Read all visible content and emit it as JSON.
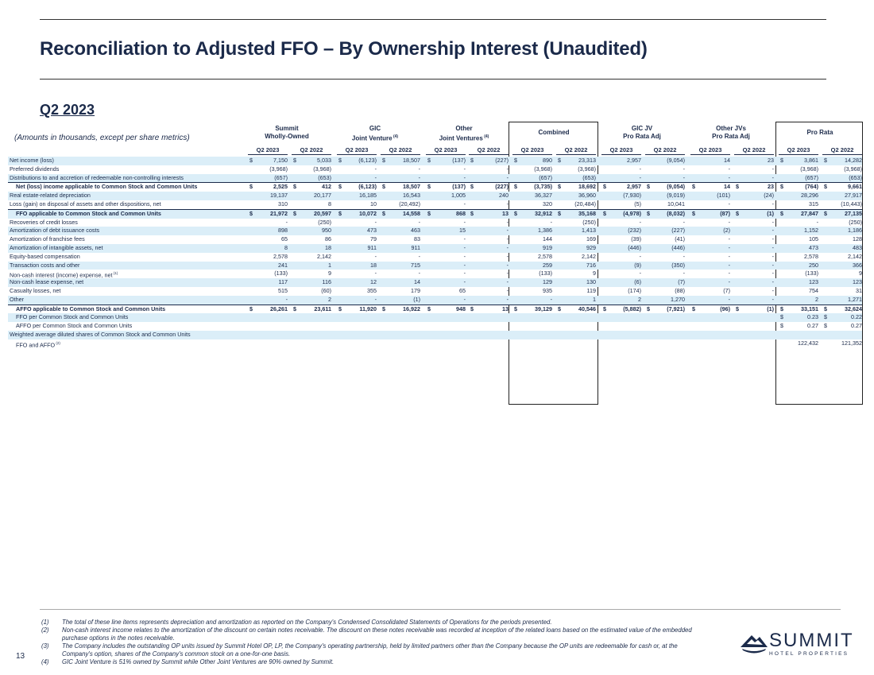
{
  "title": "Reconciliation to Adjusted FFO – By Ownership Interest (Unaudited)",
  "period": "Q2 2023",
  "amounts_note": "(Amounts in thousands, except per share metrics)",
  "groups": [
    {
      "line1": "Summit",
      "line2": "Wholly-Owned",
      "sup": ""
    },
    {
      "line1": "GIC",
      "line2": "Joint Venture",
      "sup": "(4)"
    },
    {
      "line1": "Other",
      "line2": "Joint Ventures",
      "sup": "(4)"
    },
    {
      "line1": "Combined",
      "line2": "",
      "sup": ""
    },
    {
      "line1": "GIC JV",
      "line2": "Pro Rata Adj",
      "sup": ""
    },
    {
      "line1": "Other JVs",
      "line2": "Pro Rata Adj",
      "sup": ""
    },
    {
      "line1": "Pro Rata",
      "line2": "",
      "sup": ""
    }
  ],
  "col_headers": [
    "Q2 2023",
    "Q2 2022",
    "Q2 2023",
    "Q2 2022",
    "Q2 2023",
    "Q2 2022",
    "Q2 2023",
    "Q2 2022",
    "Q2 2023",
    "Q2 2022",
    "Q2 2023",
    "Q2 2022",
    "Q2 2023",
    "Q2 2022"
  ],
  "rows": [
    {
      "label": "Net income (loss)",
      "sup": "",
      "indent": false,
      "bold": false,
      "shade": true,
      "uline": false,
      "dollar": [
        true,
        true,
        true,
        true,
        true,
        true,
        true,
        true,
        false,
        false,
        false,
        false,
        true,
        true
      ],
      "v": [
        "7,150",
        "5,033",
        "(6,123)",
        "18,507",
        "(137)",
        "(227)",
        "890",
        "23,313",
        "2,957",
        "(9,054)",
        "14",
        "23",
        "3,861",
        "14,282"
      ]
    },
    {
      "label": "Preferred dividends",
      "sup": "",
      "indent": false,
      "bold": false,
      "shade": false,
      "uline": false,
      "dollar": [],
      "v": [
        "(3,968)",
        "(3,968)",
        "-",
        "-",
        "-",
        "-",
        "(3,968)",
        "(3,968)",
        "-",
        "-",
        "-",
        "-",
        "(3,968)",
        "(3,968)"
      ]
    },
    {
      "label": "Distributions to and accretion of redeemable non-controlling interests",
      "sup": "",
      "indent": false,
      "bold": false,
      "shade": true,
      "uline": true,
      "dollar": [],
      "v": [
        "(657)",
        "(653)",
        "-",
        "-",
        "-",
        "-",
        "(657)",
        "(653)",
        "-",
        "-",
        "-",
        "-",
        "(657)",
        "(653)"
      ]
    },
    {
      "label": "Net (loss) income applicable to Common Stock and Common Units",
      "sup": "",
      "indent": true,
      "bold": true,
      "shade": false,
      "uline": false,
      "dollar": [
        true,
        true,
        true,
        true,
        true,
        true,
        true,
        true,
        true,
        true,
        true,
        true,
        true,
        true
      ],
      "v": [
        "2,525",
        "412",
        "(6,123)",
        "18,507",
        "(137)",
        "(227)",
        "(3,735)",
        "18,692",
        "2,957",
        "(9,054)",
        "14",
        "23",
        "(764)",
        "9,661"
      ]
    },
    {
      "label": "Real estate-related depreciation",
      "sup": "",
      "indent": false,
      "bold": false,
      "shade": true,
      "uline": false,
      "dollar": [],
      "v": [
        "19,137",
        "20,177",
        "16,185",
        "16,543",
        "1,005",
        "240",
        "36,327",
        "36,960",
        "(7,930)",
        "(9,019)",
        "(101)",
        "(24)",
        "28,296",
        "27,917"
      ]
    },
    {
      "label": "Loss (gain) on disposal of assets and other dispositions, net",
      "sup": "",
      "indent": false,
      "bold": false,
      "shade": false,
      "uline": true,
      "dollar": [],
      "v": [
        "310",
        "8",
        "10",
        "(20,492)",
        "-",
        "-",
        "320",
        "(20,484)",
        "(5)",
        "10,041",
        "-",
        "-",
        "315",
        "(10,443)"
      ]
    },
    {
      "label": "FFO applicable to Common Stock and Common Units",
      "sup": "",
      "indent": true,
      "bold": true,
      "shade": true,
      "uline": false,
      "dollar": [
        true,
        true,
        true,
        true,
        true,
        true,
        true,
        true,
        true,
        true,
        true,
        true,
        true,
        true
      ],
      "v": [
        "21,972",
        "20,597",
        "10,072",
        "14,558",
        "868",
        "13",
        "32,912",
        "35,168",
        "(4,978)",
        "(8,032)",
        "(87)",
        "(1)",
        "27,847",
        "27,135"
      ]
    },
    {
      "label": "Recoveries of credit losses",
      "sup": "",
      "indent": false,
      "bold": false,
      "shade": false,
      "uline": false,
      "dollar": [],
      "v": [
        "-",
        "(250)",
        "-",
        "-",
        "-",
        "-",
        "-",
        "(250)",
        "-",
        "-",
        "-",
        "-",
        "-",
        "(250)"
      ]
    },
    {
      "label": "Amortization of debt issuance costs",
      "sup": "",
      "indent": false,
      "bold": false,
      "shade": true,
      "uline": false,
      "dollar": [],
      "v": [
        "898",
        "950",
        "473",
        "463",
        "15",
        "-",
        "1,386",
        "1,413",
        "(232)",
        "(227)",
        "(2)",
        "-",
        "1,152",
        "1,186"
      ]
    },
    {
      "label": "Amortization of franchise fees",
      "sup": "",
      "indent": false,
      "bold": false,
      "shade": false,
      "uline": false,
      "dollar": [],
      "v": [
        "65",
        "86",
        "79",
        "83",
        "-",
        "-",
        "144",
        "169",
        "(39)",
        "(41)",
        "-",
        "-",
        "105",
        "128"
      ]
    },
    {
      "label": "Amortization of intangible assets, net",
      "sup": "",
      "indent": false,
      "bold": false,
      "shade": true,
      "uline": false,
      "dollar": [],
      "v": [
        "8",
        "18",
        "911",
        "911",
        "-",
        "-",
        "919",
        "929",
        "(446)",
        "(446)",
        "-",
        "-",
        "473",
        "483"
      ]
    },
    {
      "label": "Equity-based compensation",
      "sup": "",
      "indent": false,
      "bold": false,
      "shade": false,
      "uline": false,
      "dollar": [],
      "v": [
        "2,578",
        "2,142",
        "-",
        "-",
        "-",
        "-",
        "2,578",
        "2,142",
        "-",
        "-",
        "-",
        "-",
        "2,578",
        "2,142"
      ]
    },
    {
      "label": "Transaction costs and other",
      "sup": "",
      "indent": false,
      "bold": false,
      "shade": true,
      "uline": false,
      "dollar": [],
      "v": [
        "241",
        "1",
        "18",
        "715",
        "-",
        "-",
        "259",
        "716",
        "(9)",
        "(350)",
        "-",
        "-",
        "250",
        "366"
      ]
    },
    {
      "label": "Non-cash interest (income) expense, net",
      "sup": "(1)",
      "indent": false,
      "bold": false,
      "shade": false,
      "uline": false,
      "dollar": [],
      "v": [
        "(133)",
        "9",
        "-",
        "-",
        "-",
        "-",
        "(133)",
        "9",
        "-",
        "-",
        "-",
        "-",
        "(133)",
        "9"
      ]
    },
    {
      "label": "Non-cash lease expense, net",
      "sup": "",
      "indent": false,
      "bold": false,
      "shade": true,
      "uline": false,
      "dollar": [],
      "v": [
        "117",
        "116",
        "12",
        "14",
        "-",
        "-",
        "129",
        "130",
        "(6)",
        "(7)",
        "-",
        "-",
        "123",
        "123"
      ]
    },
    {
      "label": "Casualty losses, net",
      "sup": "",
      "indent": false,
      "bold": false,
      "shade": false,
      "uline": false,
      "dollar": [],
      "v": [
        "515",
        "(60)",
        "355",
        "179",
        "65",
        "-",
        "935",
        "119",
        "(174)",
        "(88)",
        "(7)",
        "-",
        "754",
        "31"
      ]
    },
    {
      "label": "Other",
      "sup": "",
      "indent": false,
      "bold": false,
      "shade": true,
      "uline": true,
      "dollar": [],
      "v": [
        "-",
        "2",
        "-",
        "(1)",
        "-",
        "-",
        "-",
        "1",
        "2",
        "1,270",
        "-",
        "-",
        "2",
        "1,271"
      ]
    },
    {
      "label": "AFFO applicable to Common Stock and Common Units",
      "sup": "",
      "indent": true,
      "bold": true,
      "shade": false,
      "uline": false,
      "dollar": [
        true,
        true,
        true,
        true,
        true,
        true,
        true,
        true,
        true,
        true,
        true,
        true,
        true,
        true
      ],
      "v": [
        "26,261",
        "23,611",
        "11,920",
        "16,922",
        "948",
        "13",
        "39,129",
        "40,546",
        "(5,882)",
        "(7,921)",
        "(96)",
        "(1)",
        "33,151",
        "32,624"
      ]
    },
    {
      "label": "FFO per Common Stock and Common Units",
      "sup": "",
      "indent": true,
      "bold": false,
      "shade": true,
      "uline": false,
      "dollar": [
        false,
        false,
        false,
        false,
        false,
        false,
        false,
        false,
        false,
        false,
        false,
        false,
        true,
        true
      ],
      "v": [
        "",
        "",
        "",
        "",
        "",
        "",
        "",
        "",
        "",
        "",
        "",
        "",
        "0.23",
        "0.22"
      ]
    },
    {
      "label": "AFFO per Common Stock and Common Units",
      "sup": "",
      "indent": true,
      "bold": false,
      "shade": false,
      "uline": false,
      "dollar": [
        false,
        false,
        false,
        false,
        false,
        false,
        false,
        false,
        false,
        false,
        false,
        false,
        true,
        true
      ],
      "v": [
        "",
        "",
        "",
        "",
        "",
        "",
        "",
        "",
        "",
        "",
        "",
        "",
        "0.27",
        "0.27"
      ]
    },
    {
      "label": "Weighted average diluted shares of Common Stock and Common Units",
      "sup": "",
      "indent": false,
      "bold": false,
      "shade": true,
      "uline": false,
      "dollar": [],
      "v": [
        "",
        "",
        "",
        "",
        "",
        "",
        "",
        "",
        "",
        "",
        "",
        "",
        "",
        ""
      ]
    },
    {
      "label": "FFO and AFFO",
      "sup": "(2)",
      "indent": true,
      "bold": false,
      "shade": false,
      "uline": false,
      "dollar": [],
      "v": [
        "",
        "",
        "",
        "",
        "",
        "",
        "",
        "",
        "",
        "",
        "",
        "",
        "122,432",
        "121,352"
      ]
    }
  ],
  "footnotes": [
    {
      "n": "(1)",
      "text": "The total of these line items represents depreciation and amortization as reported on the Company's Condensed Consolidated Statements of Operations for the periods presented."
    },
    {
      "n": "(2)",
      "text": "Non-cash interest income relates to the amortization of the discount on certain notes receivable. The discount on these notes receivable was recorded at inception of the related loans based on the estimated value of the embedded purchase options in the notes receivable."
    },
    {
      "n": "(3)",
      "text": "The Company includes the outstanding OP units issued by Summit Hotel OP, LP, the Company's operating partnership, held by limited partners other than the Company because the OP units are redeemable for cash or, at the Company's option, shares of the Company's common stock on a one-for-one basis."
    },
    {
      "n": "(4)",
      "text": "GIC Joint Venture is 51% owned by Summit while Other Joint Ventures are 90% owned by Summit."
    }
  ],
  "page_number": "13",
  "logo": {
    "name": "SUMMIT",
    "sub": "HOTEL PROPERTIES",
    "icon": "mountain-icon"
  },
  "dollar_sign": "$"
}
